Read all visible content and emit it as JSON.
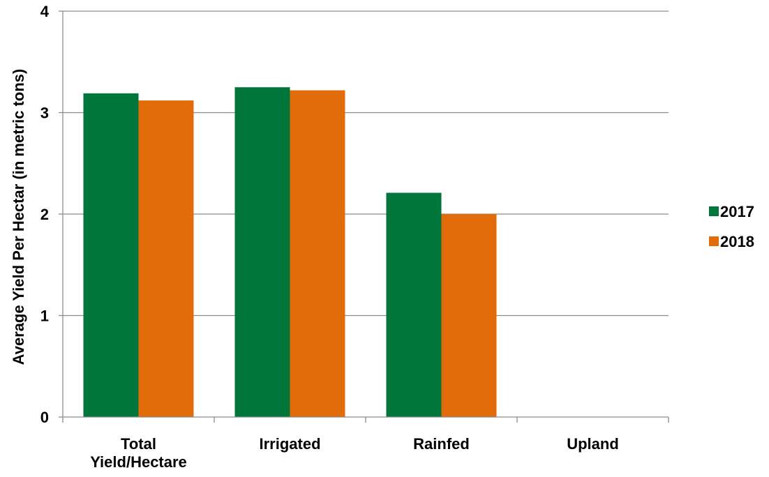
{
  "chart_data": {
    "type": "bar",
    "title": "",
    "xlabel": "",
    "ylabel": "Average Yield Per Hectar (in metric tons)",
    "categories": [
      [
        "Total",
        "Yield/Hectare"
      ],
      [
        "Irrigated"
      ],
      [
        "Rainfed"
      ],
      [
        "Upland"
      ]
    ],
    "series": [
      {
        "name": "2017",
        "color": "#00763A",
        "values": [
          3.19,
          3.25,
          2.21,
          0
        ]
      },
      {
        "name": "2018",
        "color": "#E36C0A",
        "values": [
          3.12,
          3.22,
          2.0,
          0
        ]
      }
    ],
    "ylim": [
      0,
      4
    ],
    "yticks": [
      0,
      1,
      2,
      3,
      4
    ],
    "grid": true,
    "legend_position": "right"
  }
}
